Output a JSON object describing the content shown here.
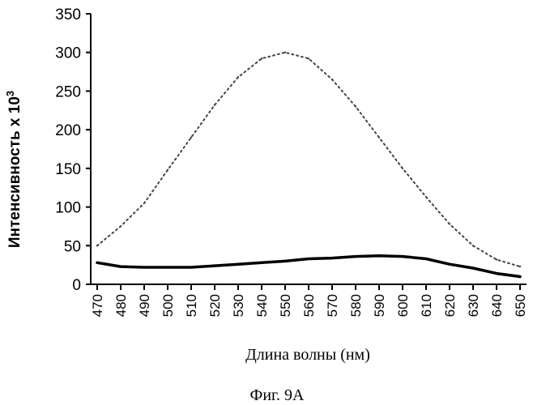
{
  "chart_data": {
    "type": "line",
    "xlabel": "Длина волны (нм)",
    "ylabel_main": "Интенсивность x 10",
    "ylabel_sup": "3",
    "ylim": [
      0,
      350
    ],
    "yticks": [
      0,
      50,
      100,
      150,
      200,
      250,
      300,
      350
    ],
    "xlim": [
      470,
      650
    ],
    "xticks": [
      470,
      480,
      490,
      500,
      510,
      520,
      530,
      540,
      550,
      560,
      570,
      580,
      590,
      600,
      610,
      620,
      630,
      640,
      650
    ],
    "grid": false,
    "x": [
      470,
      480,
      490,
      500,
      510,
      520,
      530,
      540,
      550,
      560,
      570,
      580,
      590,
      600,
      610,
      620,
      630,
      640,
      650
    ],
    "series": [
      {
        "style": "dotted",
        "values": [
          50,
          75,
          105,
          148,
          190,
          232,
          268,
          292,
          300,
          292,
          265,
          230,
          190,
          150,
          113,
          78,
          50,
          32,
          23
        ]
      },
      {
        "style": "solid",
        "values": [
          28,
          23,
          22,
          22,
          22,
          24,
          26,
          28,
          30,
          33,
          34,
          36,
          37,
          36,
          33,
          26,
          21,
          14,
          10
        ]
      }
    ]
  },
  "caption": "Фиг. 9А"
}
